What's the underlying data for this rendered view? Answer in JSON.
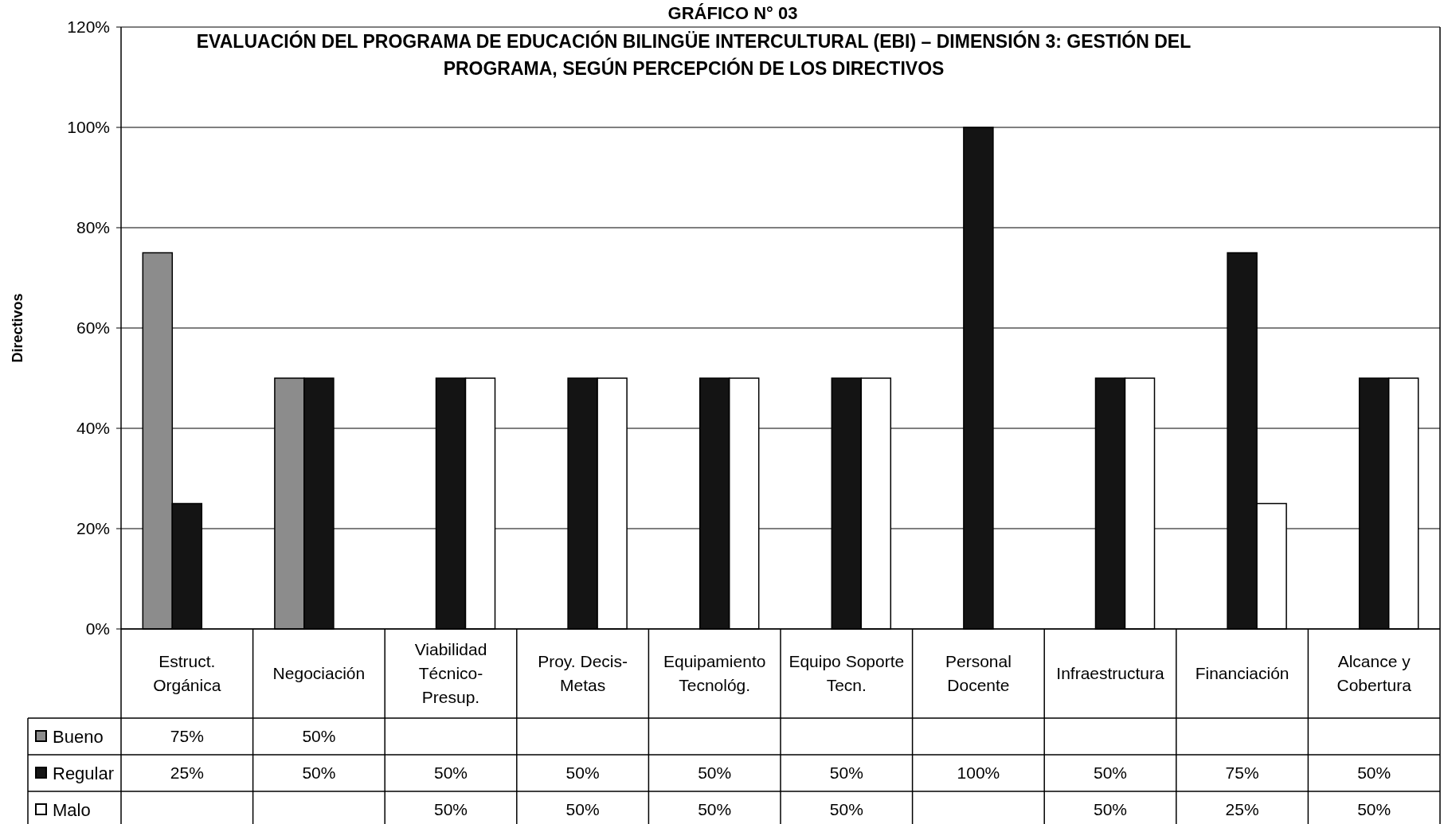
{
  "chart_data": {
    "type": "bar",
    "title": "GRÁFICO N° 03",
    "subtitle": "EVALUACIÓN DEL PROGRAMA DE EDUCACIÓN BILINGÜE INTERCULTURAL (EBI) – DIMENSIÓN 3: GESTIÓN DEL PROGRAMA, SEGÚN PERCEPCIÓN DE LOS DIRECTIVOS",
    "ylabel": "Directivos",
    "categories": [
      "Estruct. Orgánica",
      "Negociación",
      "Viabilidad Técnico-Presup.",
      "Proy. Decis-Metas",
      "Equipamiento Tecnológ.",
      "Equipo Soporte Tecn.",
      "Personal Docente",
      "Infraestructura",
      "Financiación",
      "Alcance y Cobertura"
    ],
    "series": [
      {
        "name": "Bueno",
        "color": "#8c8c8c",
        "values": [
          75,
          50,
          null,
          null,
          null,
          null,
          null,
          null,
          null,
          null
        ],
        "value_labels": [
          "75%",
          "50%",
          null,
          null,
          null,
          null,
          null,
          null,
          null,
          null
        ]
      },
      {
        "name": "Regular",
        "color": "#141414",
        "values": [
          25,
          50,
          50,
          50,
          50,
          50,
          100,
          50,
          75,
          50
        ],
        "value_labels": [
          "25%",
          "50%",
          "50%",
          "50%",
          "50%",
          "50%",
          "100%",
          "50%",
          "75%",
          "50%"
        ]
      },
      {
        "name": "Malo",
        "color": "#ffffff",
        "values": [
          null,
          null,
          50,
          50,
          50,
          50,
          null,
          50,
          25,
          50
        ],
        "value_labels": [
          null,
          null,
          "50%",
          "50%",
          "50%",
          "50%",
          null,
          "50%",
          "25%",
          "50%"
        ]
      }
    ],
    "ylim": [
      0,
      120
    ],
    "yticks": [
      {
        "value": 0,
        "label": "0%"
      },
      {
        "value": 20,
        "label": "20%"
      },
      {
        "value": 40,
        "label": "40%"
      },
      {
        "value": 60,
        "label": "60%"
      },
      {
        "value": 80,
        "label": "80%"
      },
      {
        "value": 100,
        "label": "100%"
      },
      {
        "value": 120,
        "label": "120%"
      }
    ],
    "grid": "y",
    "legend": "bottom"
  }
}
